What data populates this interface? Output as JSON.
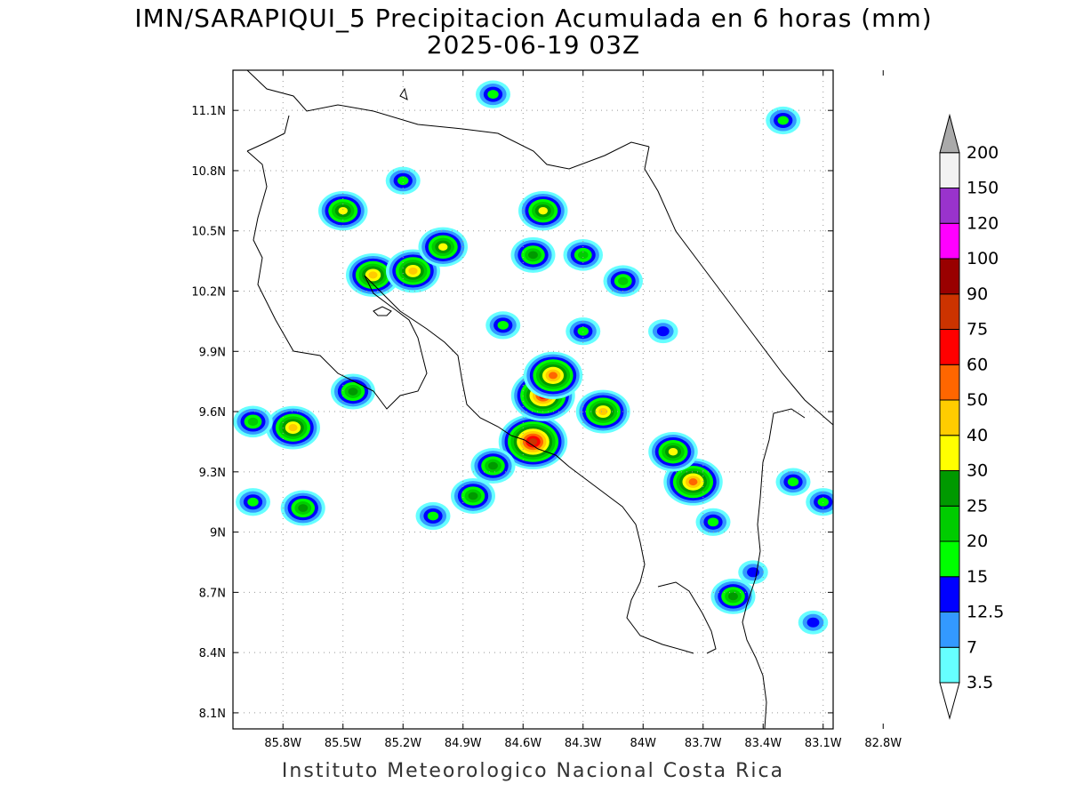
{
  "title_line1": "IMN/SARAPIQUI_5 Precipitacion Acumulada en 6 horas (mm)",
  "title_line2": "2025-06-19 03Z",
  "credit": "Instituto Meteorologico Nacional Costa Rica",
  "map": {
    "lon_range": [
      -86.05,
      -83.05
    ],
    "lat_range": [
      8.02,
      11.3
    ],
    "lat_ticks": [
      {
        "value": 11.1,
        "label": "11.1N"
      },
      {
        "value": 10.8,
        "label": "10.8N"
      },
      {
        "value": 10.5,
        "label": "10.5N"
      },
      {
        "value": 10.2,
        "label": "10.2N"
      },
      {
        "value": 9.9,
        "label": "9.9N"
      },
      {
        "value": 9.6,
        "label": "9.6N"
      },
      {
        "value": 9.3,
        "label": "9.3N"
      },
      {
        "value": 9.0,
        "label": "9N"
      },
      {
        "value": 8.7,
        "label": "8.7N"
      },
      {
        "value": 8.4,
        "label": "8.4N"
      },
      {
        "value": 8.1,
        "label": "8.1N"
      }
    ],
    "lon_ticks": [
      {
        "value": -85.8,
        "label": "85.8W"
      },
      {
        "value": -85.5,
        "label": "85.5W"
      },
      {
        "value": -85.2,
        "label": "85.2W"
      },
      {
        "value": -84.9,
        "label": "84.9W"
      },
      {
        "value": -84.6,
        "label": "84.6W"
      },
      {
        "value": -84.3,
        "label": "84.3W"
      },
      {
        "value": -84.0,
        "label": "84W"
      },
      {
        "value": -83.7,
        "label": "83.7W"
      },
      {
        "value": -83.4,
        "label": "83.4W"
      },
      {
        "value": -83.1,
        "label": "83.1W"
      },
      {
        "value": -82.8,
        "label": "82.8W"
      }
    ],
    "grid": true
  },
  "colorbar": {
    "levels": [
      {
        "label": "3.5",
        "color": "#66ffff"
      },
      {
        "label": "7",
        "color": "#3399ff"
      },
      {
        "label": "12.5",
        "color": "#0000ff"
      },
      {
        "label": "15",
        "color": "#00ff00"
      },
      {
        "label": "20",
        "color": "#00cc00"
      },
      {
        "label": "25",
        "color": "#009900"
      },
      {
        "label": "30",
        "color": "#ffff00"
      },
      {
        "label": "40",
        "color": "#ffcc00"
      },
      {
        "label": "50",
        "color": "#ff6600"
      },
      {
        "label": "60",
        "color": "#ff0000"
      },
      {
        "label": "75",
        "color": "#cc3300"
      },
      {
        "label": "90",
        "color": "#990000"
      },
      {
        "label": "100",
        "color": "#ff00ff"
      },
      {
        "label": "120",
        "color": "#9933cc"
      },
      {
        "label": "150",
        "color": "#f2f2f2"
      },
      {
        "label": "200",
        "color": "#aaaaaa"
      }
    ],
    "bottom_color": "#ffffff"
  },
  "precip_cells": [
    {
      "lon": -84.55,
      "lat": 9.45,
      "value": 75
    },
    {
      "lon": -84.5,
      "lat": 9.68,
      "value": 60
    },
    {
      "lon": -84.45,
      "lat": 9.78,
      "value": 50
    },
    {
      "lon": -83.75,
      "lat": 9.25,
      "value": 50
    },
    {
      "lon": -84.2,
      "lat": 9.6,
      "value": 40
    },
    {
      "lon": -83.85,
      "lat": 9.4,
      "value": 30
    },
    {
      "lon": -85.35,
      "lat": 10.28,
      "value": 40
    },
    {
      "lon": -85.15,
      "lat": 10.3,
      "value": 40
    },
    {
      "lon": -85.0,
      "lat": 10.42,
      "value": 30
    },
    {
      "lon": -84.5,
      "lat": 10.6,
      "value": 30
    },
    {
      "lon": -84.55,
      "lat": 10.38,
      "value": 25
    },
    {
      "lon": -85.75,
      "lat": 9.52,
      "value": 40
    },
    {
      "lon": -84.75,
      "lat": 9.33,
      "value": 25
    },
    {
      "lon": -85.5,
      "lat": 10.6,
      "value": 30
    },
    {
      "lon": -85.45,
      "lat": 9.7,
      "value": 25
    },
    {
      "lon": -84.85,
      "lat": 9.18,
      "value": 25
    },
    {
      "lon": -85.05,
      "lat": 9.08,
      "value": 15
    },
    {
      "lon": -85.7,
      "lat": 9.12,
      "value": 25
    },
    {
      "lon": -83.55,
      "lat": 8.68,
      "value": 25
    },
    {
      "lon": -83.25,
      "lat": 9.25,
      "value": 15
    },
    {
      "lon": -84.3,
      "lat": 10.38,
      "value": 20
    },
    {
      "lon": -84.1,
      "lat": 10.25,
      "value": 20
    },
    {
      "lon": -84.3,
      "lat": 10.0,
      "value": 15
    },
    {
      "lon": -84.7,
      "lat": 10.03,
      "value": 15
    },
    {
      "lon": -83.3,
      "lat": 11.05,
      "value": 15
    },
    {
      "lon": -84.75,
      "lat": 11.18,
      "value": 15
    },
    {
      "lon": -85.2,
      "lat": 10.75,
      "value": 15
    },
    {
      "lon": -85.95,
      "lat": 9.55,
      "value": 20
    },
    {
      "lon": -85.95,
      "lat": 9.15,
      "value": 15
    },
    {
      "lon": -83.1,
      "lat": 9.15,
      "value": 15
    },
    {
      "lon": -83.45,
      "lat": 8.8,
      "value": 12.5
    },
    {
      "lon": -83.15,
      "lat": 8.55,
      "value": 12.5
    },
    {
      "lon": -83.65,
      "lat": 9.05,
      "value": 15
    },
    {
      "lon": -83.9,
      "lat": 10.0,
      "value": 12.5
    }
  ]
}
